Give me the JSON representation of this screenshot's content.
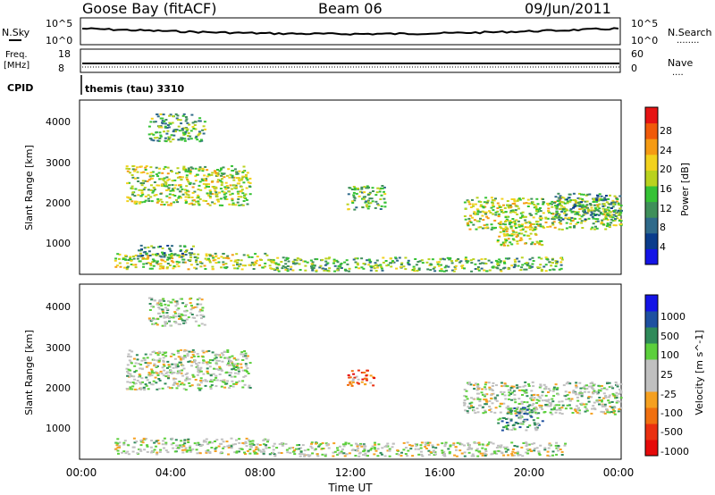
{
  "header": {
    "station": "Goose Bay (fitACF)",
    "beam": "Beam 06",
    "date": "09/Jun/2011"
  },
  "summary_panel": {
    "left_label": "N.Sky",
    "left_ticks": [
      "10^5",
      "10^0"
    ],
    "right_label": "N.Search",
    "right_ticks": [
      "10^5",
      "10^0"
    ],
    "legend_dots": "........",
    "series_color": "#000000"
  },
  "freq_panel": {
    "left_label_top": "Freq.",
    "left_label_unit": "[MHz]",
    "left_ticks": [
      "18",
      "8"
    ],
    "right_label": "Nave",
    "right_ticks": [
      "60",
      "0"
    ],
    "legend_dots": "...."
  },
  "cpid_panel": {
    "label": "CPID",
    "value": "themis (tau) 3310"
  },
  "chart_data": [
    {
      "type": "heatmap",
      "title": "Power",
      "ylabel": "Slant Range [km]",
      "y_ticks": [
        "1000",
        "2000",
        "3000",
        "4000"
      ],
      "ylim": [
        180,
        4500
      ],
      "xlim_hours": [
        0,
        24
      ],
      "x_ticks": [
        "00:00",
        "04:00",
        "08:00",
        "12:00",
        "16:00",
        "20:00",
        "00:00"
      ],
      "colorbar": {
        "label": "Power [dB]",
        "ticks": [
          "4",
          "8",
          "12",
          "16",
          "20",
          "24",
          "28"
        ],
        "colors": [
          "#1414e6",
          "#0a3c8c",
          "#2f6a8a",
          "#3f8f5a",
          "#35c235",
          "#b9d21e",
          "#f2d21e",
          "#f59b14",
          "#f05a0a",
          "#e61414"
        ]
      },
      "regions": [
        {
          "t": [
            1.5,
            8.3
          ],
          "r": [
            300,
            700
          ],
          "level": 0.55
        },
        {
          "t": [
            8.3,
            21.5
          ],
          "r": [
            250,
            600
          ],
          "level": 0.45
        },
        {
          "t": [
            2.0,
            7.5
          ],
          "r": [
            1900,
            2900
          ],
          "level": 0.55
        },
        {
          "t": [
            3.0,
            5.5
          ],
          "r": [
            3500,
            4200
          ],
          "level": 0.4
        },
        {
          "t": [
            2.5,
            5.0
          ],
          "r": [
            600,
            900
          ],
          "level": 0.35
        },
        {
          "t": [
            11.8,
            13.5
          ],
          "r": [
            1800,
            2400
          ],
          "level": 0.45
        },
        {
          "t": [
            17.0,
            24.0
          ],
          "r": [
            1300,
            2100
          ],
          "level": 0.55
        },
        {
          "t": [
            18.5,
            20.5
          ],
          "r": [
            900,
            1500
          ],
          "level": 0.6
        },
        {
          "t": [
            21.0,
            24.0
          ],
          "r": [
            1500,
            2200
          ],
          "level": 0.35
        }
      ]
    },
    {
      "type": "heatmap",
      "title": "Velocity",
      "ylabel": "Slant Range [km]",
      "y_ticks": [
        "1000",
        "2000",
        "3000",
        "4000"
      ],
      "ylim": [
        180,
        4500
      ],
      "xlim_hours": [
        0,
        24
      ],
      "x_ticks": [
        "00:00",
        "04:00",
        "08:00",
        "12:00",
        "16:00",
        "20:00",
        "00:00"
      ],
      "xlabel": "Time UT",
      "colorbar": {
        "label": "Velocity [m s^-1]",
        "ticks": [
          "1000",
          "500",
          "100",
          "25",
          "-25",
          "-100",
          "-500",
          "-1000"
        ],
        "colors": [
          "#1414e6",
          "#1e50a0",
          "#2f8a5a",
          "#5ccf3c",
          "#c0c0c0",
          "#c0c0c0",
          "#f5a020",
          "#f07010",
          "#ea3010",
          "#e60a0a"
        ]
      },
      "regions": [
        {
          "t": [
            1.5,
            8.3
          ],
          "r": [
            300,
            700
          ],
          "level": 0.45
        },
        {
          "t": [
            8.3,
            21.5
          ],
          "r": [
            250,
            600
          ],
          "level": 0.45
        },
        {
          "t": [
            2.0,
            7.5
          ],
          "r": [
            1900,
            2900
          ],
          "level": 0.45
        },
        {
          "t": [
            3.0,
            5.5
          ],
          "r": [
            3500,
            4200
          ],
          "level": 0.45
        },
        {
          "t": [
            11.8,
            13.0
          ],
          "r": [
            2000,
            2400
          ],
          "level": 0.75
        },
        {
          "t": [
            17.0,
            24.0
          ],
          "r": [
            1300,
            2100
          ],
          "level": 0.45
        },
        {
          "t": [
            18.5,
            20.5
          ],
          "r": [
            900,
            1500
          ],
          "level": 0.3
        }
      ]
    }
  ]
}
